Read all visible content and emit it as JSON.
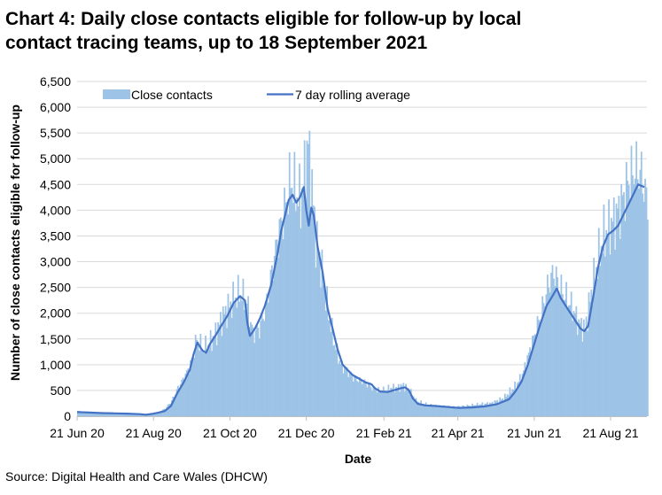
{
  "title_line1": "Chart 4: Daily close contacts eligible for follow-up by local",
  "title_line2": "contact tracing teams, up to 18 September 2021",
  "source": "Source: Digital Health and Care Wales (DHCW)",
  "colors": {
    "bars": "#9dc3e6",
    "line": "#4472c4",
    "grid": "#d9d9d9",
    "axis": "#bfbfbf"
  },
  "chart_data": {
    "type": "bar",
    "title": "Chart 4: Daily close contacts eligible for follow-up by local contact tracing teams, up to 18 September 2021",
    "xlabel": "Date",
    "ylabel": "Number of close contacts eligible for follow-up",
    "ylim": [
      0,
      6500
    ],
    "yticks": [
      0,
      500,
      1000,
      1500,
      2000,
      2500,
      3000,
      3500,
      4000,
      4500,
      5000,
      5500,
      6000,
      6500
    ],
    "ytick_labels": [
      "0",
      "500",
      "1,000",
      "1,500",
      "2,000",
      "2,500",
      "3,000",
      "3,500",
      "4,000",
      "4,500",
      "5,000",
      "5,500",
      "6,000",
      "6,500"
    ],
    "xlim_days": [
      0,
      455
    ],
    "x_start_date": "2020-06-21",
    "xticks": [
      {
        "label": "21 Jun 20",
        "day": 0
      },
      {
        "label": "21 Aug 20",
        "day": 61
      },
      {
        "label": "21 Oct 20",
        "day": 122
      },
      {
        "label": "21 Dec 20",
        "day": 183
      },
      {
        "label": "21 Feb 21",
        "day": 245
      },
      {
        "label": "21 Apr 21",
        "day": 304
      },
      {
        "label": "21 Jun 21",
        "day": 365
      },
      {
        "label": "21 Aug 21",
        "day": 426
      }
    ],
    "legend": {
      "position": "top",
      "bars_label": "Close contacts",
      "line_label": "7 day rolling average"
    },
    "series": [
      {
        "name": "Close contacts",
        "kind": "bar",
        "sampling": "daily values, piecewise-linear approximation of the envelope read from the chart (day offset, value)",
        "points": [
          [
            0,
            100
          ],
          [
            5,
            80
          ],
          [
            10,
            60
          ],
          [
            20,
            50
          ],
          [
            30,
            50
          ],
          [
            40,
            40
          ],
          [
            50,
            50
          ],
          [
            55,
            30
          ],
          [
            60,
            60
          ],
          [
            65,
            80
          ],
          [
            70,
            150
          ],
          [
            75,
            300
          ],
          [
            80,
            550
          ],
          [
            85,
            750
          ],
          [
            90,
            1000
          ],
          [
            95,
            1500
          ],
          [
            100,
            1300
          ],
          [
            105,
            1400
          ],
          [
            110,
            1600
          ],
          [
            115,
            1900
          ],
          [
            120,
            2100
          ],
          [
            125,
            2300
          ],
          [
            130,
            2400
          ],
          [
            135,
            2200
          ],
          [
            140,
            1600
          ],
          [
            145,
            1700
          ],
          [
            150,
            2100
          ],
          [
            155,
            2800
          ],
          [
            160,
            3500
          ],
          [
            165,
            4000
          ],
          [
            170,
            4600
          ],
          [
            175,
            4300
          ],
          [
            178,
            4200
          ],
          [
            181,
            4700
          ],
          [
            184,
            5300
          ],
          [
            187,
            4400
          ],
          [
            190,
            3500
          ],
          [
            195,
            2800
          ],
          [
            200,
            2000
          ],
          [
            205,
            1400
          ],
          [
            210,
            1000
          ],
          [
            215,
            900
          ],
          [
            220,
            750
          ],
          [
            225,
            700
          ],
          [
            230,
            650
          ],
          [
            235,
            550
          ],
          [
            240,
            500
          ],
          [
            245,
            500
          ],
          [
            250,
            550
          ],
          [
            255,
            550
          ],
          [
            260,
            600
          ],
          [
            265,
            500
          ],
          [
            270,
            300
          ],
          [
            275,
            250
          ],
          [
            280,
            220
          ],
          [
            290,
            200
          ],
          [
            300,
            180
          ],
          [
            310,
            200
          ],
          [
            320,
            230
          ],
          [
            330,
            250
          ],
          [
            340,
            350
          ],
          [
            350,
            600
          ],
          [
            355,
            800
          ],
          [
            360,
            1200
          ],
          [
            365,
            1600
          ],
          [
            370,
            2000
          ],
          [
            375,
            2500
          ],
          [
            380,
            2800
          ],
          [
            385,
            2500
          ],
          [
            390,
            2300
          ],
          [
            395,
            2100
          ],
          [
            400,
            1800
          ],
          [
            405,
            1700
          ],
          [
            410,
            2400
          ],
          [
            415,
            3000
          ],
          [
            420,
            3500
          ],
          [
            425,
            3700
          ],
          [
            430,
            3900
          ],
          [
            435,
            4200
          ],
          [
            440,
            4600
          ],
          [
            445,
            4800
          ],
          [
            450,
            4700
          ],
          [
            455,
            4100
          ]
        ]
      },
      {
        "name": "7 day rolling average",
        "kind": "line",
        "points": [
          [
            0,
            80
          ],
          [
            10,
            70
          ],
          [
            20,
            60
          ],
          [
            30,
            55
          ],
          [
            40,
            50
          ],
          [
            50,
            40
          ],
          [
            55,
            30
          ],
          [
            60,
            45
          ],
          [
            65,
            70
          ],
          [
            70,
            100
          ],
          [
            75,
            200
          ],
          [
            80,
            450
          ],
          [
            85,
            650
          ],
          [
            90,
            900
          ],
          [
            93,
            1200
          ],
          [
            96,
            1430
          ],
          [
            100,
            1280
          ],
          [
            103,
            1230
          ],
          [
            106,
            1400
          ],
          [
            110,
            1550
          ],
          [
            115,
            1750
          ],
          [
            120,
            1950
          ],
          [
            125,
            2200
          ],
          [
            130,
            2330
          ],
          [
            134,
            2250
          ],
          [
            136,
            1800
          ],
          [
            138,
            1560
          ],
          [
            142,
            1700
          ],
          [
            146,
            1900
          ],
          [
            150,
            2150
          ],
          [
            155,
            2550
          ],
          [
            160,
            3150
          ],
          [
            163,
            3600
          ],
          [
            166,
            3900
          ],
          [
            169,
            4200
          ],
          [
            172,
            4300
          ],
          [
            175,
            4150
          ],
          [
            178,
            4250
          ],
          [
            181,
            4450
          ],
          [
            183,
            4000
          ],
          [
            185,
            3700
          ],
          [
            187,
            4050
          ],
          [
            189,
            3900
          ],
          [
            192,
            3300
          ],
          [
            196,
            2800
          ],
          [
            200,
            2100
          ],
          [
            204,
            1700
          ],
          [
            208,
            1300
          ],
          [
            212,
            1000
          ],
          [
            216,
            900
          ],
          [
            220,
            800
          ],
          [
            225,
            730
          ],
          [
            230,
            660
          ],
          [
            235,
            620
          ],
          [
            238,
            540
          ],
          [
            242,
            480
          ],
          [
            248,
            470
          ],
          [
            254,
            510
          ],
          [
            258,
            540
          ],
          [
            262,
            560
          ],
          [
            265,
            500
          ],
          [
            268,
            350
          ],
          [
            272,
            240
          ],
          [
            278,
            210
          ],
          [
            285,
            200
          ],
          [
            295,
            180
          ],
          [
            305,
            160
          ],
          [
            315,
            170
          ],
          [
            325,
            190
          ],
          [
            335,
            230
          ],
          [
            345,
            330
          ],
          [
            350,
            480
          ],
          [
            355,
            680
          ],
          [
            360,
            1000
          ],
          [
            365,
            1400
          ],
          [
            370,
            1800
          ],
          [
            375,
            2150
          ],
          [
            380,
            2350
          ],
          [
            383,
            2480
          ],
          [
            386,
            2300
          ],
          [
            390,
            2150
          ],
          [
            394,
            2000
          ],
          [
            398,
            1850
          ],
          [
            402,
            1700
          ],
          [
            405,
            1650
          ],
          [
            408,
            1750
          ],
          [
            412,
            2300
          ],
          [
            416,
            2900
          ],
          [
            420,
            3300
          ],
          [
            424,
            3530
          ],
          [
            428,
            3600
          ],
          [
            432,
            3700
          ],
          [
            436,
            3900
          ],
          [
            440,
            4100
          ],
          [
            444,
            4300
          ],
          [
            448,
            4500
          ],
          [
            451,
            4470
          ],
          [
            453,
            4450
          ]
        ]
      }
    ]
  }
}
